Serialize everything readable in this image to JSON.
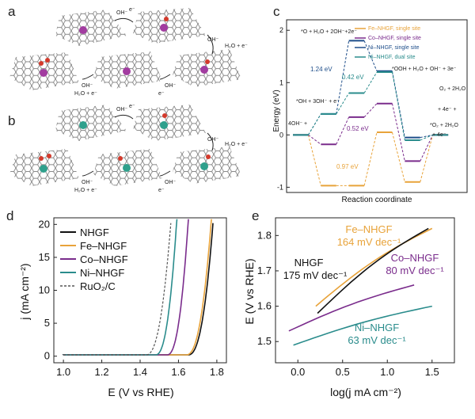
{
  "panels": {
    "a": "a",
    "b": "b",
    "c": "c",
    "d": "d",
    "e": "e"
  },
  "mechanism": {
    "a": {
      "labels": {
        "oh_top": "OH⁻",
        "e_top": "e⁻",
        "oh_right": "OH⁻",
        "h2o_e_right": "H₂O + e⁻",
        "oh_mid_left": "OH⁻",
        "h2o_e_left": "H₂O + e⁻",
        "oh_mid_right": "OH⁻",
        "e_mid_right": "e⁻"
      }
    },
    "b": {
      "labels": {
        "oh_top": "OH⁻",
        "e_top": "e⁻",
        "oh_right": "OH⁻",
        "h2o_e_right": "H₂O + e⁻",
        "oh_mid_left": "OH⁻",
        "h2o_e_left": "H₂O + e⁻",
        "oh_mid_right": "OH⁻",
        "e_mid_right": "e⁻"
      }
    }
  },
  "colors": {
    "fe": "#e8a33a",
    "co": "#7a2c8c",
    "ni": "#2a8c8c",
    "ni_dual": "#1e4e8a",
    "nhgf": "#111111",
    "ruo2": "#555555",
    "metal_a": "#a23ca0",
    "metal_b": "#2fa08c",
    "oxygen": "#d33a2c"
  },
  "chart_data": [
    {
      "panel": "c",
      "type": "line",
      "title": "",
      "xlabel": "Reaction coordinate",
      "ylabel": "Energy (eV)",
      "ylim": [
        -1.1,
        2.2
      ],
      "yticks": [
        -1,
        0,
        1,
        2
      ],
      "legend_position": "top-right",
      "series": [
        {
          "name": "Fe–NHGF, single site",
          "levels": [
            0,
            -0.97,
            -0.97,
            0.05,
            -0.9,
            0
          ]
        },
        {
          "name": "Co–NHGF, single site",
          "levels": [
            0,
            -0.18,
            0.34,
            0.6,
            -0.5,
            0
          ]
        },
        {
          "name": "Ni–NHGF, single site",
          "levels": [
            0,
            0.4,
            1.8,
            1.22,
            -0.05,
            0
          ]
        },
        {
          "name": "Ni–NHGF, dual site",
          "levels": [
            0,
            0.4,
            0.8,
            1.2,
            -0.1,
            0
          ]
        }
      ],
      "annotations": {
        "step1": "*O + H₂O + 2OH⁻+2e⁻",
        "step2": "*OOH + H₂O + OH⁻ + 3e⁻",
        "step3": "*OH + 3OH⁻ + e⁻",
        "step4": "4OH⁻ +",
        "step5": "O₂ + 2H₂O",
        "step6": "+ 4e⁻ +",
        "step7": "*O₂ + 2H₂O",
        "step8": "+ 4e⁻",
        "ev1": "1.24 eV",
        "ev2": "0.42 eV",
        "ev3": "0.52 eV",
        "ev4": "0.97 eV"
      }
    },
    {
      "panel": "d",
      "type": "line",
      "xlabel": "E (V vs RHE)",
      "ylabel": "j (mA cm⁻²)",
      "xlim": [
        0.95,
        1.85
      ],
      "ylim": [
        -1,
        21
      ],
      "xticks": [
        "1.0",
        "1.2",
        "1.4",
        "1.6",
        "1.8"
      ],
      "yticks": [
        "0",
        "5",
        "10",
        "15",
        "20"
      ],
      "legend_position": "top-left",
      "series": [
        {
          "name": "NHGF",
          "onset": 1.7,
          "j20": 1.78
        },
        {
          "name": "Fe–NHGF",
          "onset": 1.69,
          "j20": 1.77
        },
        {
          "name": "Co–NHGF",
          "onset": 1.59,
          "j20": 1.65
        },
        {
          "name": "Ni–NHGF",
          "onset": 1.53,
          "j20": 1.59
        },
        {
          "name": "RuO₂/C",
          "onset": 1.48,
          "j20": 1.56
        }
      ]
    },
    {
      "panel": "e",
      "type": "line",
      "xlabel": "log(j mA cm⁻²)",
      "ylabel": "E (V vs RHE)",
      "xlim": [
        -0.25,
        1.75
      ],
      "ylim": [
        1.44,
        1.85
      ],
      "xticks": [
        "0.0",
        "0.5",
        "1.0",
        "1.5"
      ],
      "yticks": [
        "1.5",
        "1.6",
        "1.7",
        "1.8"
      ],
      "series": [
        {
          "name": "Fe–NHGF",
          "slope": "164 mV dec⁻¹",
          "x": [
            0.2,
            1.5
          ],
          "y": [
            1.6,
            1.82
          ]
        },
        {
          "name": "NHGF",
          "slope": "175 mV dec⁻¹",
          "x": [
            0.22,
            1.46
          ],
          "y": [
            1.58,
            1.82
          ]
        },
        {
          "name": "Co–NHGF",
          "slope": "80 mV dec⁻¹",
          "x": [
            -0.1,
            1.3
          ],
          "y": [
            1.53,
            1.66
          ]
        },
        {
          "name": "Ni–NHGF",
          "slope": "63 mV dec⁻¹",
          "x": [
            -0.05,
            1.5
          ],
          "y": [
            1.49,
            1.6
          ]
        }
      ]
    }
  ]
}
